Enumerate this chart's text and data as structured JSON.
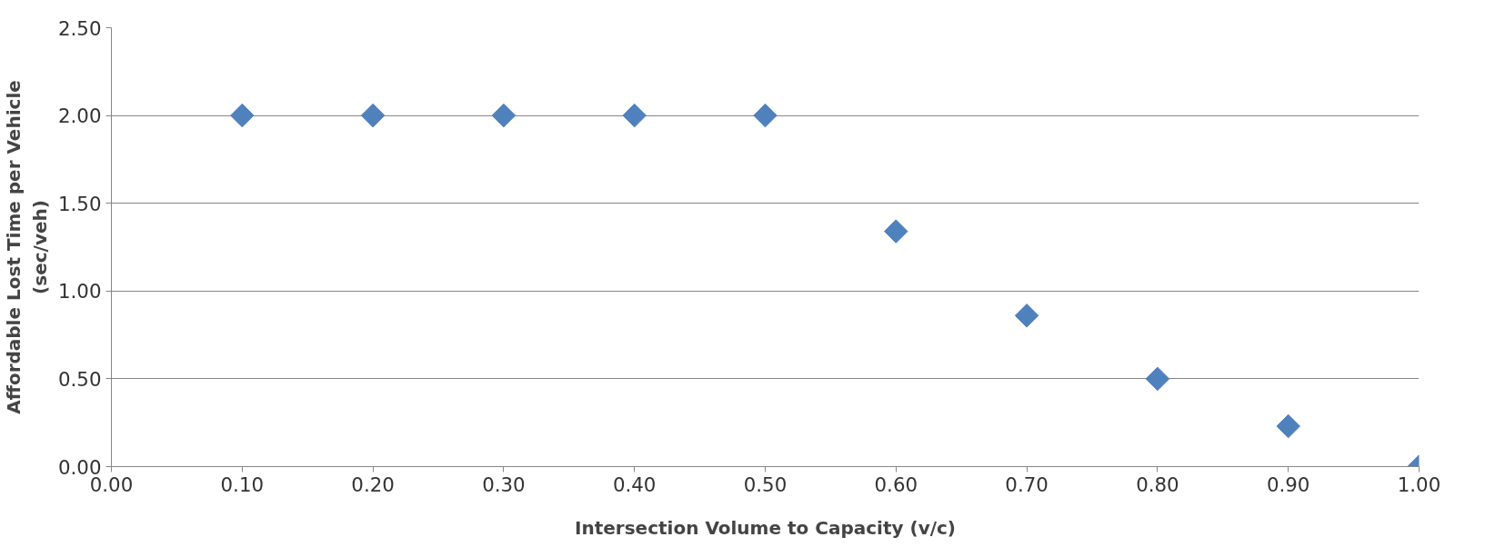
{
  "chart_data": {
    "type": "scatter",
    "xlabel": "Intersection Volume to Capacity (v/c)",
    "ylabel": "Affordable Lost Time per Vehicle\n(sec/veh)",
    "x": [
      0.1,
      0.2,
      0.3,
      0.4,
      0.5,
      0.6,
      0.7,
      0.8,
      0.9,
      1.0
    ],
    "series": [
      {
        "color": "#4f81bd",
        "values": [
          2.0,
          2.0,
          2.0,
          2.0,
          2.0,
          1.34,
          0.86,
          0.5,
          0.23,
          0.0
        ]
      }
    ],
    "xlim": [
      0,
      1
    ],
    "ylim": [
      0,
      2.5
    ],
    "xticks": [
      {
        "value": 0,
        "label": "0.00"
      },
      {
        "value": 0.1,
        "label": "0.10"
      },
      {
        "value": 0.2,
        "label": "0.20"
      },
      {
        "value": 0.3,
        "label": "0.30"
      },
      {
        "value": 0.4,
        "label": "0.40"
      },
      {
        "value": 0.5,
        "label": "0.50"
      },
      {
        "value": 0.6,
        "label": "0.60"
      },
      {
        "value": 0.7,
        "label": "0.70"
      },
      {
        "value": 0.8,
        "label": "0.80"
      },
      {
        "value": 0.9,
        "label": "0.90"
      },
      {
        "value": 1,
        "label": "1.00"
      }
    ],
    "yticks": [
      {
        "value": 0,
        "label": "0.00"
      },
      {
        "value": 0.5,
        "label": "0.50"
      },
      {
        "value": 1,
        "label": "1.00"
      },
      {
        "value": 1.5,
        "label": "1.50"
      },
      {
        "value": 2,
        "label": "2.00"
      },
      {
        "value": 2.5,
        "label": "2.50"
      }
    ],
    "grid": "y",
    "marker": "diamond"
  }
}
